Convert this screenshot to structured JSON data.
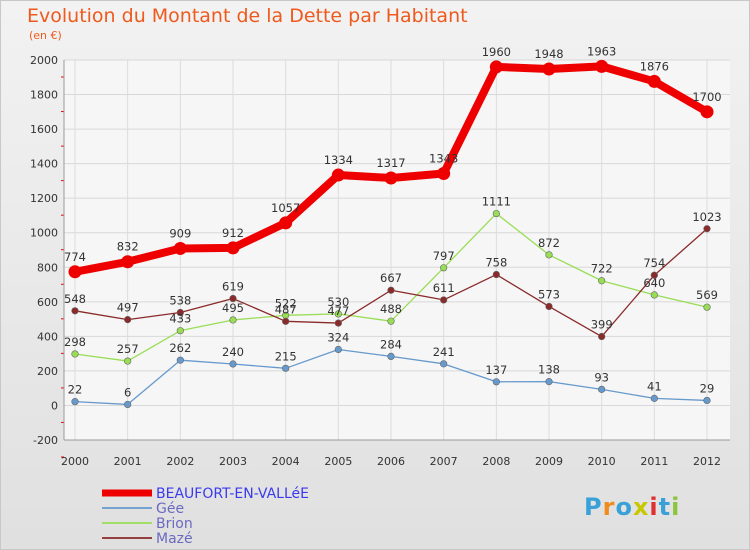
{
  "title": "Evolution du Montant de la Dette par Habitant",
  "unit": "(en €)",
  "logo": {
    "text": "Proxiti",
    "colors": [
      "#3aa0d8",
      "#f08c1e",
      "#3aa0d8",
      "#c8c800",
      "#e03030",
      "#3aa0d8",
      "#8cc43c"
    ]
  },
  "chart_data": {
    "type": "line",
    "x": [
      "2000",
      "2001",
      "2002",
      "2003",
      "2004",
      "2005",
      "2006",
      "2007",
      "2008",
      "2009",
      "2010",
      "2011",
      "2012"
    ],
    "ylim": [
      -200,
      2000
    ],
    "yticks": [
      -200,
      0,
      200,
      400,
      600,
      800,
      1000,
      1200,
      1400,
      1600,
      1800,
      2000
    ],
    "grid": true,
    "legend": "bottom-left",
    "series": [
      {
        "name": "BEAUFORT-EN-VALLéE",
        "color": "#ee0000",
        "values": [
          774,
          832,
          909,
          912,
          1057,
          1334,
          1317,
          1343,
          1960,
          1948,
          1963,
          1876,
          1700
        ],
        "labels": [
          "774",
          "832",
          "909",
          "912",
          "1057",
          "1334",
          "1317",
          "1343",
          "1960",
          "1948",
          "1963",
          "1876",
          "1700"
        ]
      },
      {
        "name": "Gée",
        "color": "#6699cc",
        "values": [
          22,
          6,
          262,
          240,
          215,
          324,
          284,
          241,
          137,
          138,
          93,
          41,
          29
        ],
        "labels": [
          "22",
          "6",
          "262",
          "240",
          "215",
          "324",
          "284",
          "241",
          "137",
          "138",
          "93",
          "41",
          "29"
        ]
      },
      {
        "name": "Brion",
        "color": "#99dd55",
        "values": [
          298,
          257,
          433,
          495,
          522,
          530,
          488,
          797,
          1111,
          872,
          722,
          640,
          569
        ],
        "labels": [
          "298",
          "257",
          "433",
          "495",
          "522",
          "530",
          "488",
          "797",
          "1111",
          "872",
          "722",
          "640",
          "569"
        ]
      },
      {
        "name": "Mazé",
        "color": "#8b2a2a",
        "values": [
          548,
          497,
          538,
          619,
          487,
          477,
          667,
          611,
          758,
          573,
          399,
          754,
          1023
        ],
        "labels": [
          "548",
          "497",
          "538",
          "619",
          "487",
          "477",
          "667",
          "611",
          "758",
          "573",
          "399",
          "754",
          "1023"
        ]
      }
    ]
  }
}
